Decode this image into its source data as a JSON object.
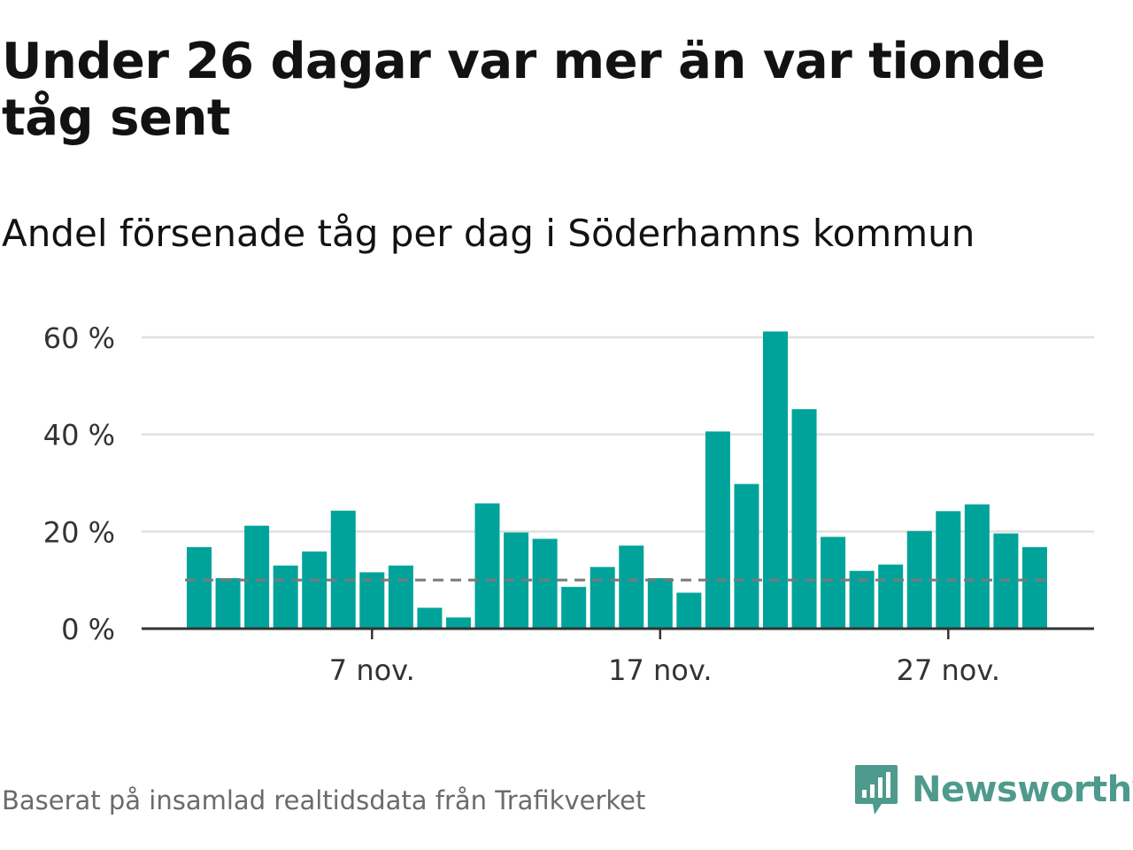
{
  "title": "Under 26 dagar var mer än var tionde tåg sent",
  "subtitle": "Andel försenade tåg per dag i Söderhamns kommun",
  "footer": {
    "source": "Baserat på insamlad realtidsdata från Trafikverket",
    "brand": "Newsworthy"
  },
  "colors": {
    "bar": "#00a39a",
    "reference_line": "#7a7a7a",
    "gridline": "#e0e0e0",
    "axis": "#333333",
    "brand": "#4e9a8d"
  },
  "chart_data": {
    "type": "bar",
    "x": [
      "2023-11-01",
      "2023-11-02",
      "2023-11-03",
      "2023-11-04",
      "2023-11-05",
      "2023-11-06",
      "2023-11-07",
      "2023-11-08",
      "2023-11-09",
      "2023-11-10",
      "2023-11-11",
      "2023-11-12",
      "2023-11-13",
      "2023-11-14",
      "2023-11-15",
      "2023-11-16",
      "2023-11-17",
      "2023-11-18",
      "2023-11-19",
      "2023-11-20",
      "2023-11-21",
      "2023-11-22",
      "2023-11-23",
      "2023-11-24",
      "2023-11-25",
      "2023-11-26",
      "2023-11-27",
      "2023-11-28",
      "2023-11-29",
      "2023-11-30"
    ],
    "values": [
      16.8,
      10.4,
      21.2,
      13.0,
      15.9,
      24.3,
      11.6,
      13.0,
      4.3,
      2.3,
      25.8,
      19.8,
      18.5,
      8.6,
      12.7,
      17.1,
      10.4,
      7.4,
      40.6,
      29.8,
      61.2,
      45.2,
      18.9,
      11.9,
      13.2,
      20.1,
      24.2,
      25.6,
      19.6,
      16.8
    ],
    "reference_line": {
      "value": 10,
      "style": "dashed"
    },
    "ylim": [
      0,
      62
    ],
    "yticks": [
      0,
      20,
      40,
      60
    ],
    "ytick_labels": [
      "0 %",
      "20 %",
      "40 %",
      "60 %"
    ],
    "xticks": [
      "2023-11-07",
      "2023-11-17",
      "2023-11-27"
    ],
    "xtick_labels": [
      "7 nov.",
      "17 nov.",
      "27 nov."
    ],
    "title": "Andel försenade tåg per dag i Söderhamns kommun",
    "xlabel": "",
    "ylabel": "",
    "grid": "horizontal"
  }
}
